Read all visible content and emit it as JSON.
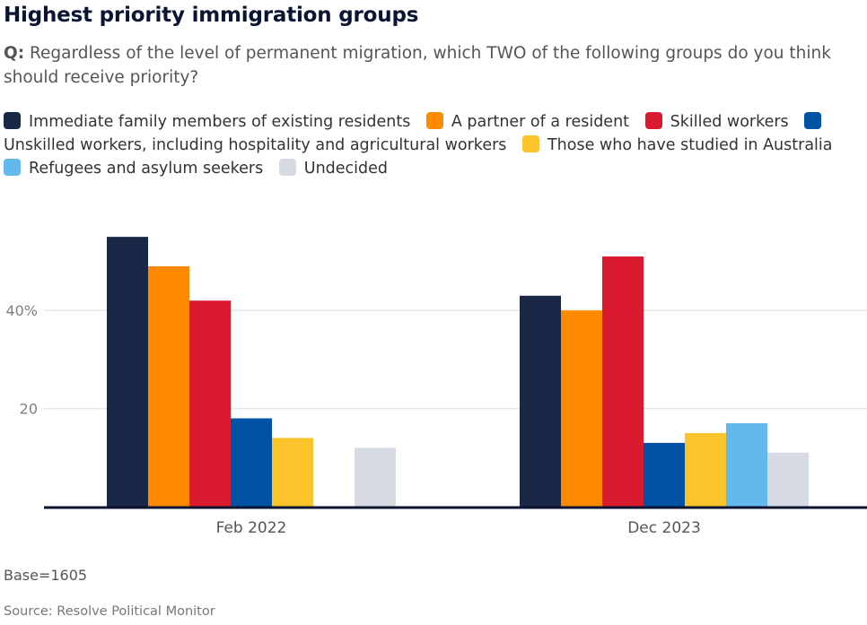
{
  "header": {
    "title": "Highest priority immigration groups",
    "question_prefix": "Q:",
    "question": "Regardless of the level of permanent migration, which TWO of the following groups do you think should receive priority?"
  },
  "footer": {
    "note": "Base=1605",
    "source": "Source: Resolve Political Monitor"
  },
  "chart_data": {
    "type": "bar",
    "title": "Highest priority immigration groups",
    "xlabel": "",
    "ylabel": "",
    "categories": [
      "Feb 2022",
      "Dec 2023"
    ],
    "series": [
      {
        "name": "Immediate family members of existing residents",
        "color": "#1b2747",
        "values": [
          55,
          43
        ]
      },
      {
        "name": "A partner of a resident",
        "color": "#ff8a00",
        "values": [
          49,
          40
        ]
      },
      {
        "name": "Skilled workers",
        "color": "#da1a2e",
        "values": [
          42,
          51
        ]
      },
      {
        "name": "Unskilled workers, including hospitality and agricultural workers",
        "color": "#0052a5",
        "values": [
          18,
          13
        ]
      },
      {
        "name": "Those who have studied in Australia",
        "color": "#fbc42b",
        "values": [
          14,
          15
        ]
      },
      {
        "name": "Refugees and asylum seekers",
        "color": "#63b8ec",
        "values": [
          null,
          17
        ]
      },
      {
        "name": "Undecided",
        "color": "#d6dae3",
        "values": [
          12,
          11
        ]
      }
    ],
    "yticks": [
      {
        "value": 20,
        "label": "20"
      },
      {
        "value": 40,
        "label": "40%"
      }
    ],
    "ylim": [
      0,
      55
    ],
    "grid": true,
    "legend_position": "top"
  }
}
